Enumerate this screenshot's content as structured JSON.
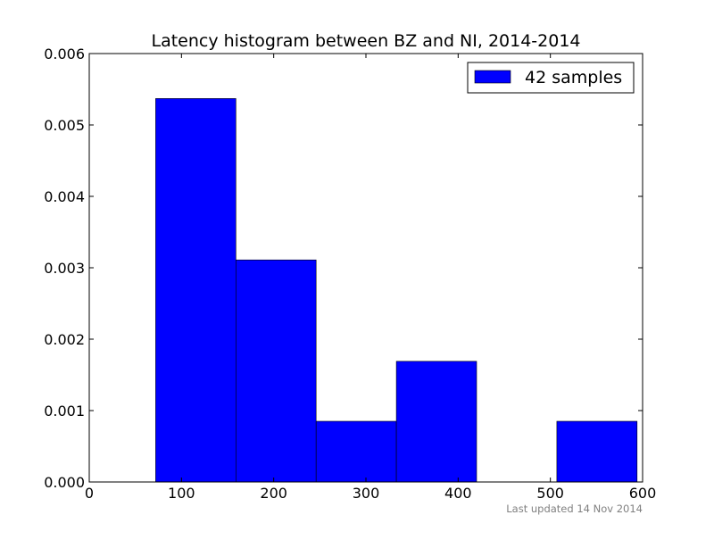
{
  "chart_data": {
    "type": "bar",
    "title": "Latency histogram between BZ and NI, 2014-2014",
    "xlabel": "",
    "ylabel": "",
    "xlim": [
      0,
      600
    ],
    "ylim": [
      0,
      0.006
    ],
    "xticks": [
      "0",
      "100",
      "200",
      "300",
      "400",
      "500",
      "600"
    ],
    "yticks": [
      "0.000",
      "0.001",
      "0.002",
      "0.003",
      "0.004",
      "0.005",
      "0.006"
    ],
    "grid": false,
    "legend_position": "top-right",
    "series": [
      {
        "name": "42 samples",
        "color": "#0000ff",
        "bins": [
          {
            "x0": 72,
            "x1": 159,
            "value": 0.00537
          },
          {
            "x0": 159,
            "x1": 246,
            "value": 0.00311
          },
          {
            "x0": 246,
            "x1": 333,
            "value": 0.00085
          },
          {
            "x0": 333,
            "x1": 420,
            "value": 0.00169
          },
          {
            "x0": 420,
            "x1": 507,
            "value": 0
          },
          {
            "x0": 507,
            "x1": 594,
            "value": 0.00085
          }
        ]
      }
    ]
  },
  "footnote": "Last updated 14 Nov 2014"
}
